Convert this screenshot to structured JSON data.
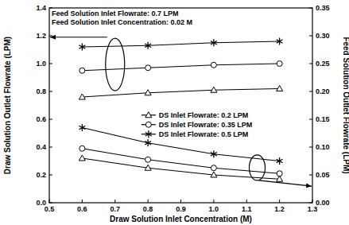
{
  "chart_data": {
    "type": "line",
    "x_label": "Draw Solution Inlet Concentration (M)",
    "y_label": "Draw Solution Outlet Flowrate (LPM)",
    "y2_label": "Feed Solution Outlet Flowrate (LPM)",
    "annotations": [
      "Feed Solution Inlet Flowrate: 0.7 LPM",
      "Feed Solution Inlet Concentration: 0.02 M"
    ],
    "x": [
      0.6,
      0.8,
      1.0,
      1.2
    ],
    "xlim": [
      0.5,
      1.3
    ],
    "xticks": [
      0.5,
      0.6,
      0.7,
      0.8,
      0.9,
      {
        "value": 1.0,
        "label": "1.0"
      },
      1.1,
      1.2,
      1.3
    ],
    "ylim": [
      0,
      1.4
    ],
    "yticks": [
      {
        "value": 0,
        "label": "0.0"
      },
      0.2,
      0.4,
      0.6,
      0.8,
      {
        "value": 1.0,
        "label": "1.0"
      },
      1.2,
      1.4
    ],
    "y2lim": [
      0,
      0.35
    ],
    "y2ticks": [
      {
        "value": 0,
        "label": "0.00"
      },
      0.05,
      {
        "value": 0.1,
        "label": "0.10"
      },
      0.15,
      {
        "value": 0.2,
        "label": "0.20"
      },
      0.25,
      {
        "value": 0.3,
        "label": "0.30"
      },
      0.35
    ],
    "legend": "center",
    "grid": false,
    "series": [
      {
        "name": "DS Inlet Flowrate: 0.2 LPM",
        "color": "#000000",
        "marker": "triangle",
        "values": [
          0.76,
          0.79,
          0.81,
          0.82
        ]
      },
      {
        "name": "DS Inlet Flowrate: 0.35 LPM",
        "color": "#000000",
        "marker": "circle",
        "values": [
          0.95,
          0.97,
          0.99,
          1.0
        ]
      },
      {
        "name": "DS Inlet Flowrate: 0.5 LPM",
        "color": "#000000",
        "marker": "star",
        "values": [
          1.12,
          1.13,
          1.15,
          1.16
        ]
      },
      {
        "name": "DS Inlet Flowrate: 0.2 LPM",
        "color": "#000000",
        "marker": "triangle",
        "axis": "y2",
        "values": [
          0.08,
          0.0625,
          0.05,
          0.0425
        ]
      },
      {
        "name": "DS Inlet Flowrate: 0.35 LPM",
        "color": "#000000",
        "marker": "circle",
        "axis": "y2",
        "values": [
          0.0975,
          0.0775,
          0.0625,
          0.0525
        ]
      },
      {
        "name": "DS Inlet Flowrate: 0.5 LPM",
        "color": "#000000",
        "marker": "star",
        "axis": "y2",
        "values": [
          0.135,
          0.1075,
          0.0875,
          0.075
        ]
      }
    ]
  }
}
